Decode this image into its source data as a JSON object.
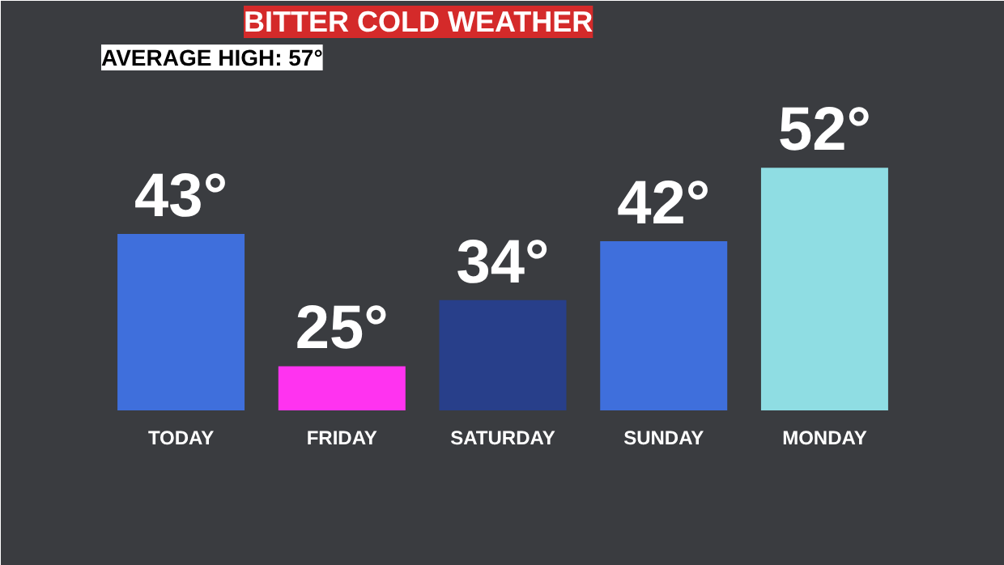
{
  "chart_data": {
    "type": "bar",
    "title": "BITTER COLD WEATHER",
    "subtitle": "AVERAGE HIGH: 57°",
    "categories": [
      "TODAY",
      "FRIDAY",
      "SATURDAY",
      "SUNDAY",
      "MONDAY"
    ],
    "values": [
      43,
      25,
      34,
      42,
      52
    ],
    "colors": [
      "#3f6fdc",
      "#ff33f0",
      "#283f8a",
      "#3f6fdc",
      "#8fdde3"
    ],
    "value_labels": [
      "43°",
      "25°",
      "34°",
      "42°",
      "52°"
    ],
    "ylim": [
      19,
      65
    ]
  }
}
